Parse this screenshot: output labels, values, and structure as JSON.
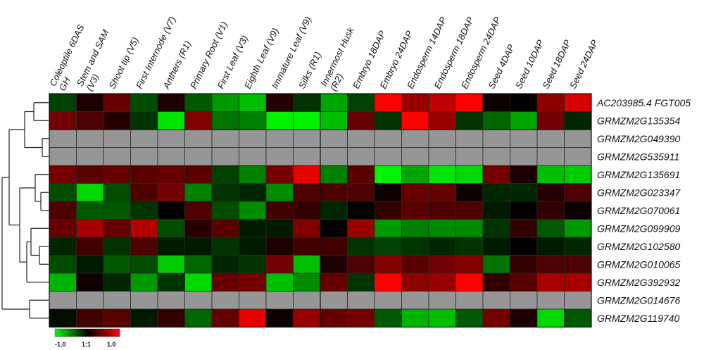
{
  "chart_data": {
    "type": "heatmap",
    "columns": [
      "Coleoptile 6DAS GH",
      "Stem and SAM (V3)",
      "Shoot tip (V5)",
      "First Internode (V7)",
      "Anthers (R1)",
      "Primary Root (V1)",
      "First Leaf (V3)",
      "Eighth Leaf (V9)",
      "Immature Leaf (V9)",
      "Silks (R1)",
      "Innermost Husk (R2)",
      "Embryo 18DAP",
      "Embryo 24DAP",
      "Endosperm 14DAP",
      "Endosperm 18DAP",
      "Endosperm 24DAP",
      "Seed 4DAP",
      "Seed 10DAP",
      "Seed 18DAP",
      "Seed 24DAP"
    ],
    "rows": [
      "AC203985.4 FGT005",
      "GRMZM2G135354",
      "GRMZM2G049390",
      "GRMZM2G535911",
      "GRMZM2G135691",
      "GRMZM2G023347",
      "GRMZM2G070061",
      "GRMZM2G099909",
      "GRMZM2G102580",
      "GRMZM2G010065",
      "GRMZM2G392932",
      "GRMZM2G014676",
      "GRMZM2G119740"
    ],
    "values": [
      [
        -0.25,
        0.1,
        0.4,
        -0.3,
        0.1,
        -0.35,
        -0.6,
        -0.75,
        0.15,
        -0.2,
        -0.65,
        -0.25,
        1.0,
        0.6,
        0.75,
        1.0,
        0.05,
        0.0,
        0.55,
        0.85
      ],
      [
        0.45,
        0.3,
        0.15,
        -0.2,
        -0.9,
        0.5,
        -0.45,
        -0.5,
        -0.95,
        -0.95,
        -0.75,
        0.4,
        -0.2,
        1.0,
        0.6,
        -0.2,
        -0.4,
        -0.65,
        0.45,
        -0.15
      ],
      [
        null,
        null,
        null,
        null,
        null,
        null,
        null,
        null,
        null,
        null,
        null,
        null,
        null,
        null,
        null,
        null,
        null,
        null,
        null,
        null
      ],
      [
        null,
        null,
        null,
        null,
        null,
        null,
        null,
        null,
        null,
        null,
        null,
        null,
        null,
        null,
        null,
        null,
        null,
        null,
        null,
        null
      ],
      [
        0.45,
        0.35,
        0.4,
        0.35,
        0.4,
        0.35,
        -0.25,
        -0.5,
        0.45,
        0.9,
        -0.5,
        0.35,
        -0.95,
        -0.65,
        -0.9,
        -0.85,
        0.45,
        0.1,
        -0.75,
        -0.8
      ],
      [
        -0.3,
        -0.85,
        -0.3,
        0.3,
        0.45,
        -0.5,
        -0.2,
        -0.15,
        -0.55,
        0.3,
        0.3,
        0.3,
        0.05,
        0.4,
        0.4,
        0.05,
        -0.15,
        -0.15,
        0.15,
        0.3
      ],
      [
        0.3,
        -0.35,
        -0.35,
        -0.2,
        0.0,
        0.3,
        -0.3,
        -0.55,
        0.25,
        0.2,
        -0.15,
        0.0,
        0.2,
        0.35,
        0.3,
        0.3,
        -0.1,
        0.0,
        0.2,
        0.05
      ],
      [
        0.4,
        0.65,
        0.4,
        0.7,
        -0.3,
        0.15,
        0.35,
        -0.1,
        -0.1,
        0.5,
        0.0,
        0.6,
        -0.6,
        -0.5,
        -0.55,
        -0.55,
        -0.2,
        0.2,
        -0.35,
        -0.6
      ],
      [
        -0.15,
        0.25,
        -0.2,
        0.3,
        -0.1,
        -0.1,
        -0.2,
        -0.1,
        0.1,
        0.25,
        0.25,
        -0.2,
        -0.25,
        -0.2,
        -0.15,
        -0.2,
        -0.1,
        0.0,
        -0.1,
        -0.15
      ],
      [
        -0.3,
        -0.1,
        -0.35,
        -0.3,
        -0.8,
        -0.4,
        -0.15,
        -0.2,
        0.45,
        -0.75,
        0.1,
        0.3,
        0.5,
        0.35,
        0.45,
        0.5,
        -0.45,
        0.2,
        0.3,
        0.3
      ],
      [
        -0.7,
        0.05,
        -0.15,
        -0.6,
        -0.2,
        -0.85,
        0.4,
        0.45,
        -0.75,
        -0.55,
        0.4,
        -0.2,
        1.0,
        0.55,
        0.6,
        1.0,
        0.2,
        0.35,
        0.65,
        0.65
      ],
      [
        null,
        null,
        null,
        null,
        null,
        null,
        null,
        null,
        null,
        null,
        null,
        null,
        null,
        null,
        null,
        null,
        null,
        null,
        null,
        null
      ],
      [
        -0.05,
        0.25,
        0.35,
        -0.1,
        0.2,
        -0.4,
        0.4,
        0.9,
        0.05,
        0.6,
        0.4,
        0.45,
        -0.35,
        -0.7,
        -0.75,
        -0.35,
        0.45,
        0.1,
        -0.85,
        -0.35
      ]
    ],
    "color_scale": {
      "min": -1.0,
      "mid": 0.0,
      "max": 1.0,
      "min_color": "#00ff00",
      "mid_color": "#000000",
      "max_color": "#ff0000",
      "missing_color": "#969696"
    },
    "legend": {
      "min_label": "-1.0",
      "mid_label": "1:1",
      "max_label": "1.0"
    },
    "dendrogram": "row clustering tree on left"
  }
}
